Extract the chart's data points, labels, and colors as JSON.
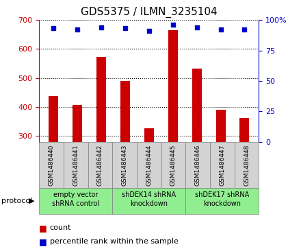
{
  "title": "GDS5375 / ILMN_3235104",
  "samples": [
    "GSM1486440",
    "GSM1486441",
    "GSM1486442",
    "GSM1486443",
    "GSM1486444",
    "GSM1486445",
    "GSM1486446",
    "GSM1486447",
    "GSM1486448"
  ],
  "counts": [
    437,
    408,
    572,
    490,
    328,
    665,
    533,
    390,
    362
  ],
  "percentile_ranks": [
    93,
    92,
    94,
    93,
    91,
    96,
    94,
    92,
    92
  ],
  "ylim_left": [
    280,
    700
  ],
  "ylim_right": [
    0,
    100
  ],
  "yticks_left": [
    300,
    400,
    500,
    600,
    700
  ],
  "yticks_right": [
    0,
    25,
    50,
    75,
    100
  ],
  "bar_color": "#cc0000",
  "scatter_color": "#0000cc",
  "groups": [
    {
      "label": "empty vector\nshRNA control",
      "start": 0,
      "end": 3,
      "color": "#90ee90"
    },
    {
      "label": "shDEK14 shRNA\nknockdown",
      "start": 3,
      "end": 6,
      "color": "#90ee90"
    },
    {
      "label": "shDEK17 shRNA\nknockdown",
      "start": 6,
      "end": 9,
      "color": "#90ee90"
    }
  ],
  "protocol_label": "protocol",
  "legend_count_label": "count",
  "legend_pct_label": "percentile rank within the sample",
  "bar_width": 0.4,
  "scatter_marker": "s",
  "scatter_size": 25,
  "title_fontsize": 11,
  "axis_label_color_left": "#cc0000",
  "axis_label_color_right": "#0000cc",
  "sample_box_color": "#d3d3d3",
  "fig_width": 4.4,
  "fig_height": 3.63,
  "dpi": 100
}
